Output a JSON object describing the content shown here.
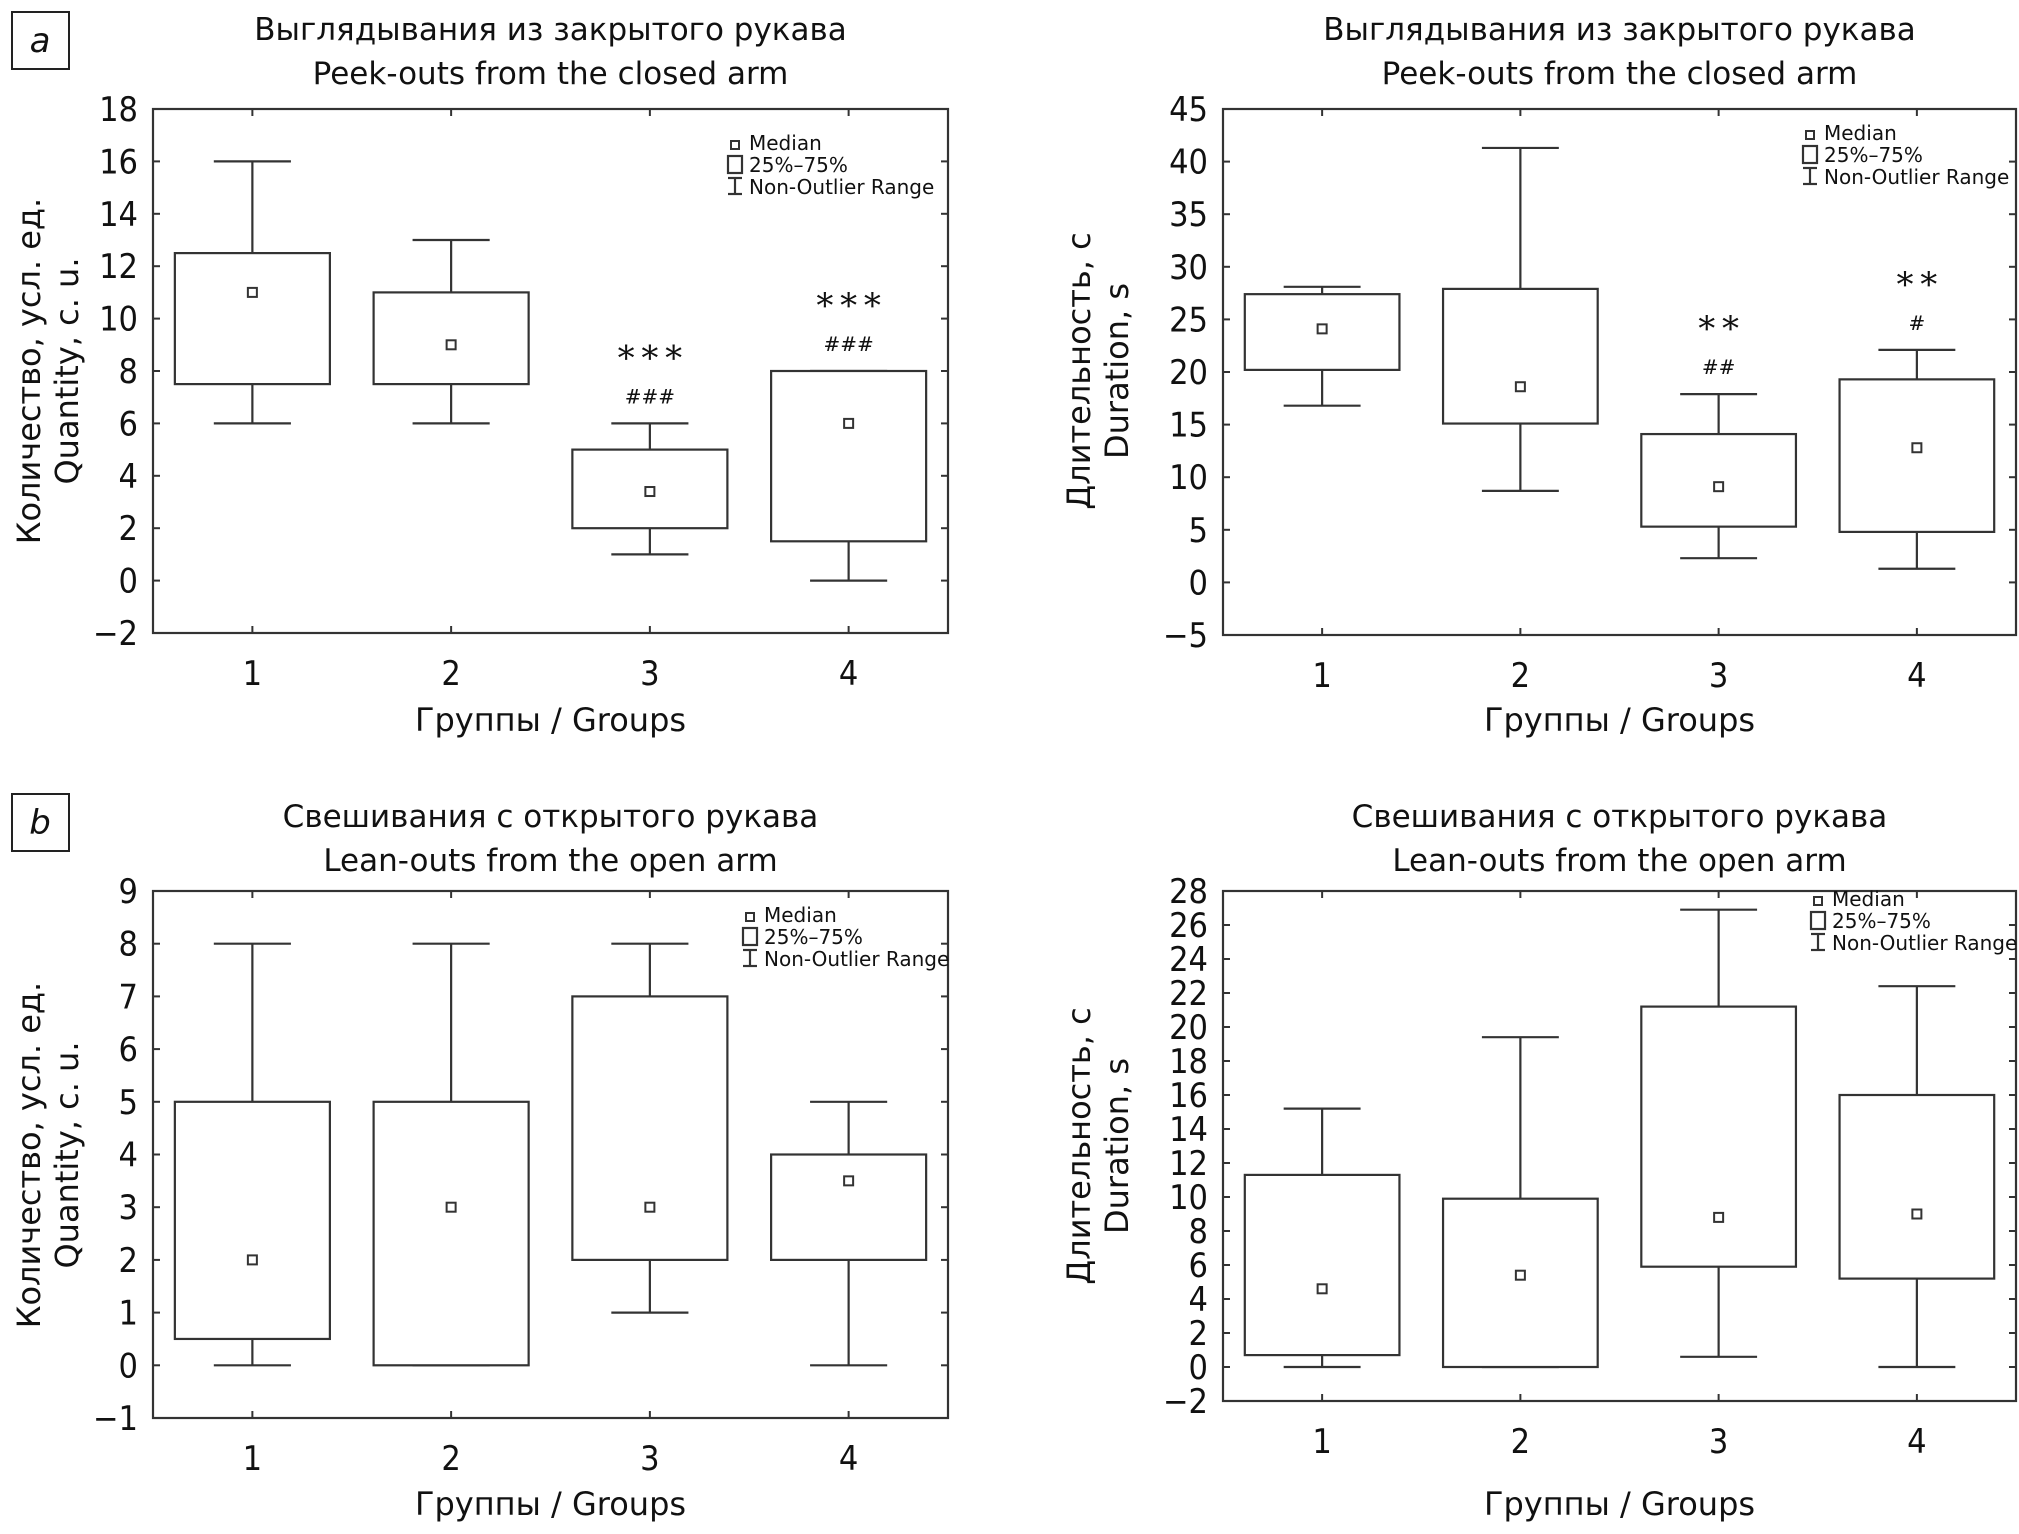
{
  "panel_labels": [
    "a",
    "b"
  ],
  "legend": {
    "median": "Median",
    "box": "25%–75%",
    "whisker": "Non-Outlier Range"
  },
  "chart_data": [
    {
      "id": "a-quantity",
      "panel": "a",
      "type": "boxplot",
      "title_ru": "Выглядывания из закрытого рукава",
      "title_en": "Peek-outs from the closed arm",
      "ylabel_ru": "Количество, усл. ед.",
      "ylabel_en": "Quantity, c. u.",
      "xlabel": "Группы / Groups",
      "categories": [
        "1",
        "2",
        "3",
        "4"
      ],
      "ylim": [
        -2,
        18
      ],
      "yticks": [
        -2,
        0,
        2,
        4,
        6,
        8,
        10,
        12,
        14,
        16,
        18
      ],
      "legend_position": "top-right",
      "grid": false,
      "boxes": [
        {
          "group": "1",
          "min": 6,
          "q1": 7.5,
          "median": 11,
          "q3": 12.5,
          "max": 16,
          "sig1": "",
          "sig2": ""
        },
        {
          "group": "2",
          "min": 6,
          "q1": 7.5,
          "median": 9,
          "q3": 11,
          "max": 13,
          "sig1": "",
          "sig2": ""
        },
        {
          "group": "3",
          "min": 1,
          "q1": 2,
          "median": 3.4,
          "q3": 5,
          "max": 6,
          "sig1": "***",
          "sig2": "###"
        },
        {
          "group": "4",
          "min": 0,
          "q1": 1.5,
          "median": 6,
          "q3": 8,
          "max": 8,
          "sig1": "***",
          "sig2": "###"
        }
      ]
    },
    {
      "id": "a-duration",
      "panel": "a",
      "type": "boxplot",
      "title_ru": "Выглядывания из закрытого рукава",
      "title_en": "Peek-outs from the closed arm",
      "ylabel_ru": "Длительность, с",
      "ylabel_en": "Duration, s",
      "xlabel": "Группы / Groups",
      "categories": [
        "1",
        "2",
        "3",
        "4"
      ],
      "ylim": [
        -5,
        45
      ],
      "yticks": [
        -5,
        0,
        5,
        10,
        15,
        20,
        25,
        30,
        35,
        40,
        45
      ],
      "legend_position": "top-right",
      "grid": false,
      "boxes": [
        {
          "group": "1",
          "min": 16.8,
          "q1": 20.2,
          "median": 24.1,
          "q3": 27.4,
          "max": 28.1,
          "sig1": "",
          "sig2": ""
        },
        {
          "group": "2",
          "min": 8.7,
          "q1": 15.1,
          "median": 18.6,
          "q3": 27.9,
          "max": 41.3,
          "sig1": "",
          "sig2": ""
        },
        {
          "group": "3",
          "min": 2.3,
          "q1": 5.3,
          "median": 9.1,
          "q3": 14.1,
          "max": 17.9,
          "sig1": "**",
          "sig2": "##"
        },
        {
          "group": "4",
          "min": 1.3,
          "q1": 4.8,
          "median": 12.8,
          "q3": 19.3,
          "max": 22.1,
          "sig1": "**",
          "sig2": "#"
        }
      ]
    },
    {
      "id": "b-quantity",
      "panel": "b",
      "type": "boxplot",
      "title_ru": "Свешивания с открытого рукава",
      "title_en": "Lean-outs from the open arm",
      "ylabel_ru": "Количество, усл. ед.",
      "ylabel_en": "Quantity, c. u.",
      "xlabel": "Группы / Groups",
      "categories": [
        "1",
        "2",
        "3",
        "4"
      ],
      "ylim": [
        -1,
        9
      ],
      "yticks": [
        -1,
        0,
        1,
        2,
        3,
        4,
        5,
        6,
        7,
        8,
        9
      ],
      "legend_position": "top-right",
      "grid": false,
      "boxes": [
        {
          "group": "1",
          "min": 0,
          "q1": 0.5,
          "median": 2,
          "q3": 5,
          "max": 8,
          "sig1": "",
          "sig2": ""
        },
        {
          "group": "2",
          "min": 0,
          "q1": 0,
          "median": 3,
          "q3": 5,
          "max": 8,
          "sig1": "",
          "sig2": ""
        },
        {
          "group": "3",
          "min": 1,
          "q1": 2,
          "median": 3,
          "q3": 7,
          "max": 8,
          "sig1": "",
          "sig2": ""
        },
        {
          "group": "4",
          "min": 0,
          "q1": 2,
          "median": 3.5,
          "q3": 4,
          "max": 5,
          "sig1": "",
          "sig2": ""
        }
      ]
    },
    {
      "id": "b-duration",
      "panel": "b",
      "type": "boxplot",
      "title_ru": "Свешивания с открытого рукава",
      "title_en": "Lean-outs from the open arm",
      "ylabel_ru": "Длительность, с",
      "ylabel_en": "Duration, s",
      "xlabel": "Группы / Groups",
      "categories": [
        "1",
        "2",
        "3",
        "4"
      ],
      "ylim": [
        -2,
        28
      ],
      "yticks": [
        -2,
        0,
        2,
        4,
        6,
        8,
        10,
        12,
        14,
        16,
        18,
        20,
        22,
        24,
        26,
        28
      ],
      "legend_position": "top-right",
      "grid": false,
      "boxes": [
        {
          "group": "1",
          "min": 0,
          "q1": 0.7,
          "median": 4.6,
          "q3": 11.3,
          "max": 15.2,
          "sig1": "",
          "sig2": ""
        },
        {
          "group": "2",
          "min": 0,
          "q1": 0,
          "median": 5.4,
          "q3": 9.9,
          "max": 19.4,
          "sig1": "",
          "sig2": ""
        },
        {
          "group": "3",
          "min": 0.6,
          "q1": 5.9,
          "median": 8.8,
          "q3": 21.2,
          "max": 26.9,
          "sig1": "",
          "sig2": ""
        },
        {
          "group": "4",
          "min": 0,
          "q1": 5.2,
          "median": 9.0,
          "q3": 16.0,
          "max": 22.4,
          "sig1": "",
          "sig2": ""
        }
      ]
    }
  ]
}
